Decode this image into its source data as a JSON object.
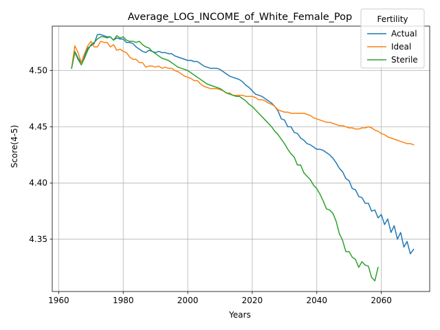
{
  "chart_data": {
    "type": "line",
    "title": "Average_LOG_INCOME_of_White_Female_Pop",
    "xlabel": "Years",
    "ylabel": "Score(4-5)",
    "xlim": [
      1958,
      2075
    ],
    "ylim": [
      4.3035,
      4.5395
    ],
    "xticks": [
      1960,
      1980,
      2000,
      2020,
      2040,
      2060
    ],
    "yticks": [
      4.35,
      4.4,
      4.45,
      4.5
    ],
    "ytick_labels": [
      "4.35",
      "4.40",
      "4.45",
      "4.50"
    ],
    "grid": true,
    "legend": {
      "title": "Fertility",
      "placement": "top-right"
    },
    "colors": {
      "Actual": "#1f77b4",
      "Ideal": "#ff7f0e",
      "Sterile": "#2ca02c",
      "grid": "#b0b0b0"
    },
    "series": [
      {
        "name": "Actual",
        "points": [
          [
            1964,
            4.502
          ],
          [
            1965,
            4.517
          ],
          [
            1966,
            4.511
          ],
          [
            1967,
            4.507
          ],
          [
            1968,
            4.513
          ],
          [
            1969,
            4.52
          ],
          [
            1970,
            4.522
          ],
          [
            1971,
            4.524
          ],
          [
            1972,
            4.532
          ],
          [
            1973,
            4.532
          ],
          [
            1974,
            4.531
          ],
          [
            1975,
            4.53
          ],
          [
            1976,
            4.53
          ],
          [
            1977,
            4.527
          ],
          [
            1978,
            4.529
          ],
          [
            1979,
            4.528
          ],
          [
            1980,
            4.528
          ],
          [
            1981,
            4.525
          ],
          [
            1982,
            4.525
          ],
          [
            1983,
            4.524
          ],
          [
            1984,
            4.521
          ],
          [
            1985,
            4.519
          ],
          [
            1986,
            4.517
          ],
          [
            1987,
            4.516
          ],
          [
            1988,
            4.518
          ],
          [
            1989,
            4.517
          ],
          [
            1990,
            4.516
          ],
          [
            1991,
            4.517
          ],
          [
            1992,
            4.516
          ],
          [
            1993,
            4.516
          ],
          [
            1994,
            4.515
          ],
          [
            1995,
            4.515
          ],
          [
            1996,
            4.513
          ],
          [
            1997,
            4.512
          ],
          [
            1998,
            4.511
          ],
          [
            1999,
            4.51
          ],
          [
            2000,
            4.509
          ],
          [
            2001,
            4.509
          ],
          [
            2002,
            4.508
          ],
          [
            2003,
            4.508
          ],
          [
            2004,
            4.506
          ],
          [
            2005,
            4.504
          ],
          [
            2006,
            4.503
          ],
          [
            2007,
            4.502
          ],
          [
            2008,
            4.502
          ],
          [
            2009,
            4.502
          ],
          [
            2010,
            4.501
          ],
          [
            2011,
            4.499
          ],
          [
            2012,
            4.497
          ],
          [
            2013,
            4.495
          ],
          [
            2014,
            4.494
          ],
          [
            2015,
            4.493
          ],
          [
            2016,
            4.492
          ],
          [
            2017,
            4.49
          ],
          [
            2018,
            4.487
          ],
          [
            2019,
            4.485
          ],
          [
            2020,
            4.482
          ],
          [
            2021,
            4.479
          ],
          [
            2022,
            4.478
          ],
          [
            2023,
            4.477
          ],
          [
            2024,
            4.475
          ],
          [
            2025,
            4.473
          ],
          [
            2026,
            4.471
          ],
          [
            2027,
            4.468
          ],
          [
            2028,
            4.464
          ],
          [
            2029,
            4.457
          ],
          [
            2030,
            4.456
          ],
          [
            2031,
            4.45
          ],
          [
            2032,
            4.45
          ],
          [
            2033,
            4.445
          ],
          [
            2034,
            4.444
          ],
          [
            2035,
            4.44
          ],
          [
            2036,
            4.438
          ],
          [
            2037,
            4.435
          ],
          [
            2038,
            4.434
          ],
          [
            2039,
            4.432
          ],
          [
            2040,
            4.43
          ],
          [
            2041,
            4.43
          ],
          [
            2042,
            4.429
          ],
          [
            2043,
            4.427
          ],
          [
            2044,
            4.425
          ],
          [
            2045,
            4.422
          ],
          [
            2046,
            4.418
          ],
          [
            2047,
            4.413
          ],
          [
            2048,
            4.41
          ],
          [
            2049,
            4.404
          ],
          [
            2050,
            4.402
          ],
          [
            2051,
            4.395
          ],
          [
            2052,
            4.394
          ],
          [
            2053,
            4.388
          ],
          [
            2054,
            4.387
          ],
          [
            2055,
            4.382
          ],
          [
            2056,
            4.382
          ],
          [
            2057,
            4.375
          ],
          [
            2058,
            4.376
          ],
          [
            2059,
            4.369
          ],
          [
            2060,
            4.372
          ],
          [
            2061,
            4.363
          ],
          [
            2062,
            4.368
          ],
          [
            2063,
            4.356
          ],
          [
            2064,
            4.362
          ],
          [
            2065,
            4.35
          ],
          [
            2066,
            4.356
          ],
          [
            2067,
            4.343
          ],
          [
            2068,
            4.348
          ],
          [
            2069,
            4.337
          ],
          [
            2070,
            4.341
          ]
        ]
      },
      {
        "name": "Ideal",
        "points": [
          [
            1964,
            4.502
          ],
          [
            1965,
            4.522
          ],
          [
            1966,
            4.516
          ],
          [
            1967,
            4.507
          ],
          [
            1968,
            4.515
          ],
          [
            1969,
            4.522
          ],
          [
            1970,
            4.526
          ],
          [
            1971,
            4.521
          ],
          [
            1972,
            4.521
          ],
          [
            1973,
            4.526
          ],
          [
            1974,
            4.525
          ],
          [
            1975,
            4.525
          ],
          [
            1976,
            4.521
          ],
          [
            1977,
            4.523
          ],
          [
            1978,
            4.518
          ],
          [
            1979,
            4.519
          ],
          [
            1980,
            4.517
          ],
          [
            1981,
            4.516
          ],
          [
            1982,
            4.512
          ],
          [
            1983,
            4.51
          ],
          [
            1984,
            4.51
          ],
          [
            1985,
            4.507
          ],
          [
            1986,
            4.507
          ],
          [
            1987,
            4.503
          ],
          [
            1988,
            4.504
          ],
          [
            1989,
            4.504
          ],
          [
            1990,
            4.503
          ],
          [
            1991,
            4.504
          ],
          [
            1992,
            4.502
          ],
          [
            1993,
            4.503
          ],
          [
            1994,
            4.502
          ],
          [
            1995,
            4.502
          ],
          [
            1996,
            4.5
          ],
          [
            1997,
            4.499
          ],
          [
            1998,
            4.497
          ],
          [
            1999,
            4.495
          ],
          [
            2000,
            4.494
          ],
          [
            2001,
            4.493
          ],
          [
            2002,
            4.491
          ],
          [
            2003,
            4.491
          ],
          [
            2004,
            4.488
          ],
          [
            2005,
            4.486
          ],
          [
            2006,
            4.485
          ],
          [
            2007,
            4.484
          ],
          [
            2008,
            4.484
          ],
          [
            2009,
            4.484
          ],
          [
            2010,
            4.483
          ],
          [
            2011,
            4.482
          ],
          [
            2012,
            4.48
          ],
          [
            2013,
            4.48
          ],
          [
            2014,
            4.478
          ],
          [
            2015,
            4.478
          ],
          [
            2016,
            4.478
          ],
          [
            2017,
            4.478
          ],
          [
            2018,
            4.477
          ],
          [
            2019,
            4.477
          ],
          [
            2020,
            4.477
          ],
          [
            2021,
            4.476
          ],
          [
            2022,
            4.474
          ],
          [
            2023,
            4.474
          ],
          [
            2024,
            4.473
          ],
          [
            2025,
            4.471
          ],
          [
            2026,
            4.47
          ],
          [
            2027,
            4.468
          ],
          [
            2028,
            4.465
          ],
          [
            2029,
            4.464
          ],
          [
            2030,
            4.463
          ],
          [
            2031,
            4.463
          ],
          [
            2032,
            4.462
          ],
          [
            2033,
            4.462
          ],
          [
            2034,
            4.462
          ],
          [
            2035,
            4.462
          ],
          [
            2036,
            4.462
          ],
          [
            2037,
            4.461
          ],
          [
            2038,
            4.46
          ],
          [
            2039,
            4.458
          ],
          [
            2040,
            4.457
          ],
          [
            2041,
            4.456
          ],
          [
            2042,
            4.455
          ],
          [
            2043,
            4.454
          ],
          [
            2044,
            4.454
          ],
          [
            2045,
            4.453
          ],
          [
            2046,
            4.452
          ],
          [
            2047,
            4.451
          ],
          [
            2048,
            4.451
          ],
          [
            2049,
            4.45
          ],
          [
            2050,
            4.449
          ],
          [
            2051,
            4.449
          ],
          [
            2052,
            4.448
          ],
          [
            2053,
            4.448
          ],
          [
            2054,
            4.449
          ],
          [
            2055,
            4.449
          ],
          [
            2056,
            4.45
          ],
          [
            2057,
            4.449
          ],
          [
            2058,
            4.447
          ],
          [
            2059,
            4.446
          ],
          [
            2060,
            4.444
          ],
          [
            2061,
            4.443
          ],
          [
            2062,
            4.441
          ],
          [
            2063,
            4.44
          ],
          [
            2064,
            4.439
          ],
          [
            2065,
            4.438
          ],
          [
            2066,
            4.437
          ],
          [
            2067,
            4.436
          ],
          [
            2068,
            4.435
          ],
          [
            2069,
            4.435
          ],
          [
            2070,
            4.434
          ]
        ]
      },
      {
        "name": "Sterile",
        "points": [
          [
            1964,
            4.502
          ],
          [
            1965,
            4.516
          ],
          [
            1966,
            4.51
          ],
          [
            1967,
            4.505
          ],
          [
            1968,
            4.511
          ],
          [
            1969,
            4.518
          ],
          [
            1970,
            4.523
          ],
          [
            1971,
            4.525
          ],
          [
            1972,
            4.528
          ],
          [
            1973,
            4.53
          ],
          [
            1974,
            4.53
          ],
          [
            1975,
            4.529
          ],
          [
            1976,
            4.53
          ],
          [
            1977,
            4.527
          ],
          [
            1978,
            4.531
          ],
          [
            1979,
            4.529
          ],
          [
            1980,
            4.53
          ],
          [
            1981,
            4.527
          ],
          [
            1982,
            4.526
          ],
          [
            1983,
            4.526
          ],
          [
            1984,
            4.525
          ],
          [
            1985,
            4.526
          ],
          [
            1986,
            4.523
          ],
          [
            1987,
            4.521
          ],
          [
            1988,
            4.52
          ],
          [
            1989,
            4.517
          ],
          [
            1990,
            4.515
          ],
          [
            1991,
            4.513
          ],
          [
            1992,
            4.511
          ],
          [
            1993,
            4.51
          ],
          [
            1994,
            4.509
          ],
          [
            1995,
            4.507
          ],
          [
            1996,
            4.505
          ],
          [
            1997,
            4.503
          ],
          [
            1998,
            4.502
          ],
          [
            1999,
            4.501
          ],
          [
            2000,
            4.5
          ],
          [
            2001,
            4.498
          ],
          [
            2002,
            4.496
          ],
          [
            2003,
            4.494
          ],
          [
            2004,
            4.492
          ],
          [
            2005,
            4.49
          ],
          [
            2006,
            4.488
          ],
          [
            2007,
            4.487
          ],
          [
            2008,
            4.486
          ],
          [
            2009,
            4.485
          ],
          [
            2010,
            4.484
          ],
          [
            2011,
            4.482
          ],
          [
            2012,
            4.48
          ],
          [
            2013,
            4.479
          ],
          [
            2014,
            4.478
          ],
          [
            2015,
            4.477
          ],
          [
            2016,
            4.477
          ],
          [
            2017,
            4.475
          ],
          [
            2018,
            4.473
          ],
          [
            2019,
            4.47
          ],
          [
            2020,
            4.468
          ],
          [
            2021,
            4.465
          ],
          [
            2022,
            4.462
          ],
          [
            2023,
            4.459
          ],
          [
            2024,
            4.456
          ],
          [
            2025,
            4.453
          ],
          [
            2026,
            4.45
          ],
          [
            2027,
            4.446
          ],
          [
            2028,
            4.443
          ],
          [
            2029,
            4.439
          ],
          [
            2030,
            4.435
          ],
          [
            2031,
            4.43
          ],
          [
            2032,
            4.426
          ],
          [
            2033,
            4.423
          ],
          [
            2034,
            4.416
          ],
          [
            2035,
            4.416
          ],
          [
            2036,
            4.409
          ],
          [
            2037,
            4.406
          ],
          [
            2038,
            4.403
          ],
          [
            2039,
            4.398
          ],
          [
            2040,
            4.395
          ],
          [
            2041,
            4.39
          ],
          [
            2042,
            4.384
          ],
          [
            2043,
            4.377
          ],
          [
            2044,
            4.376
          ],
          [
            2045,
            4.373
          ],
          [
            2046,
            4.366
          ],
          [
            2047,
            4.355
          ],
          [
            2048,
            4.349
          ],
          [
            2049,
            4.339
          ],
          [
            2050,
            4.339
          ],
          [
            2051,
            4.334
          ],
          [
            2052,
            4.332
          ],
          [
            2053,
            4.325
          ],
          [
            2054,
            4.33
          ],
          [
            2055,
            4.327
          ],
          [
            2056,
            4.326
          ],
          [
            2057,
            4.316
          ],
          [
            2058,
            4.313
          ],
          [
            2059,
            4.325
          ]
        ]
      }
    ]
  }
}
